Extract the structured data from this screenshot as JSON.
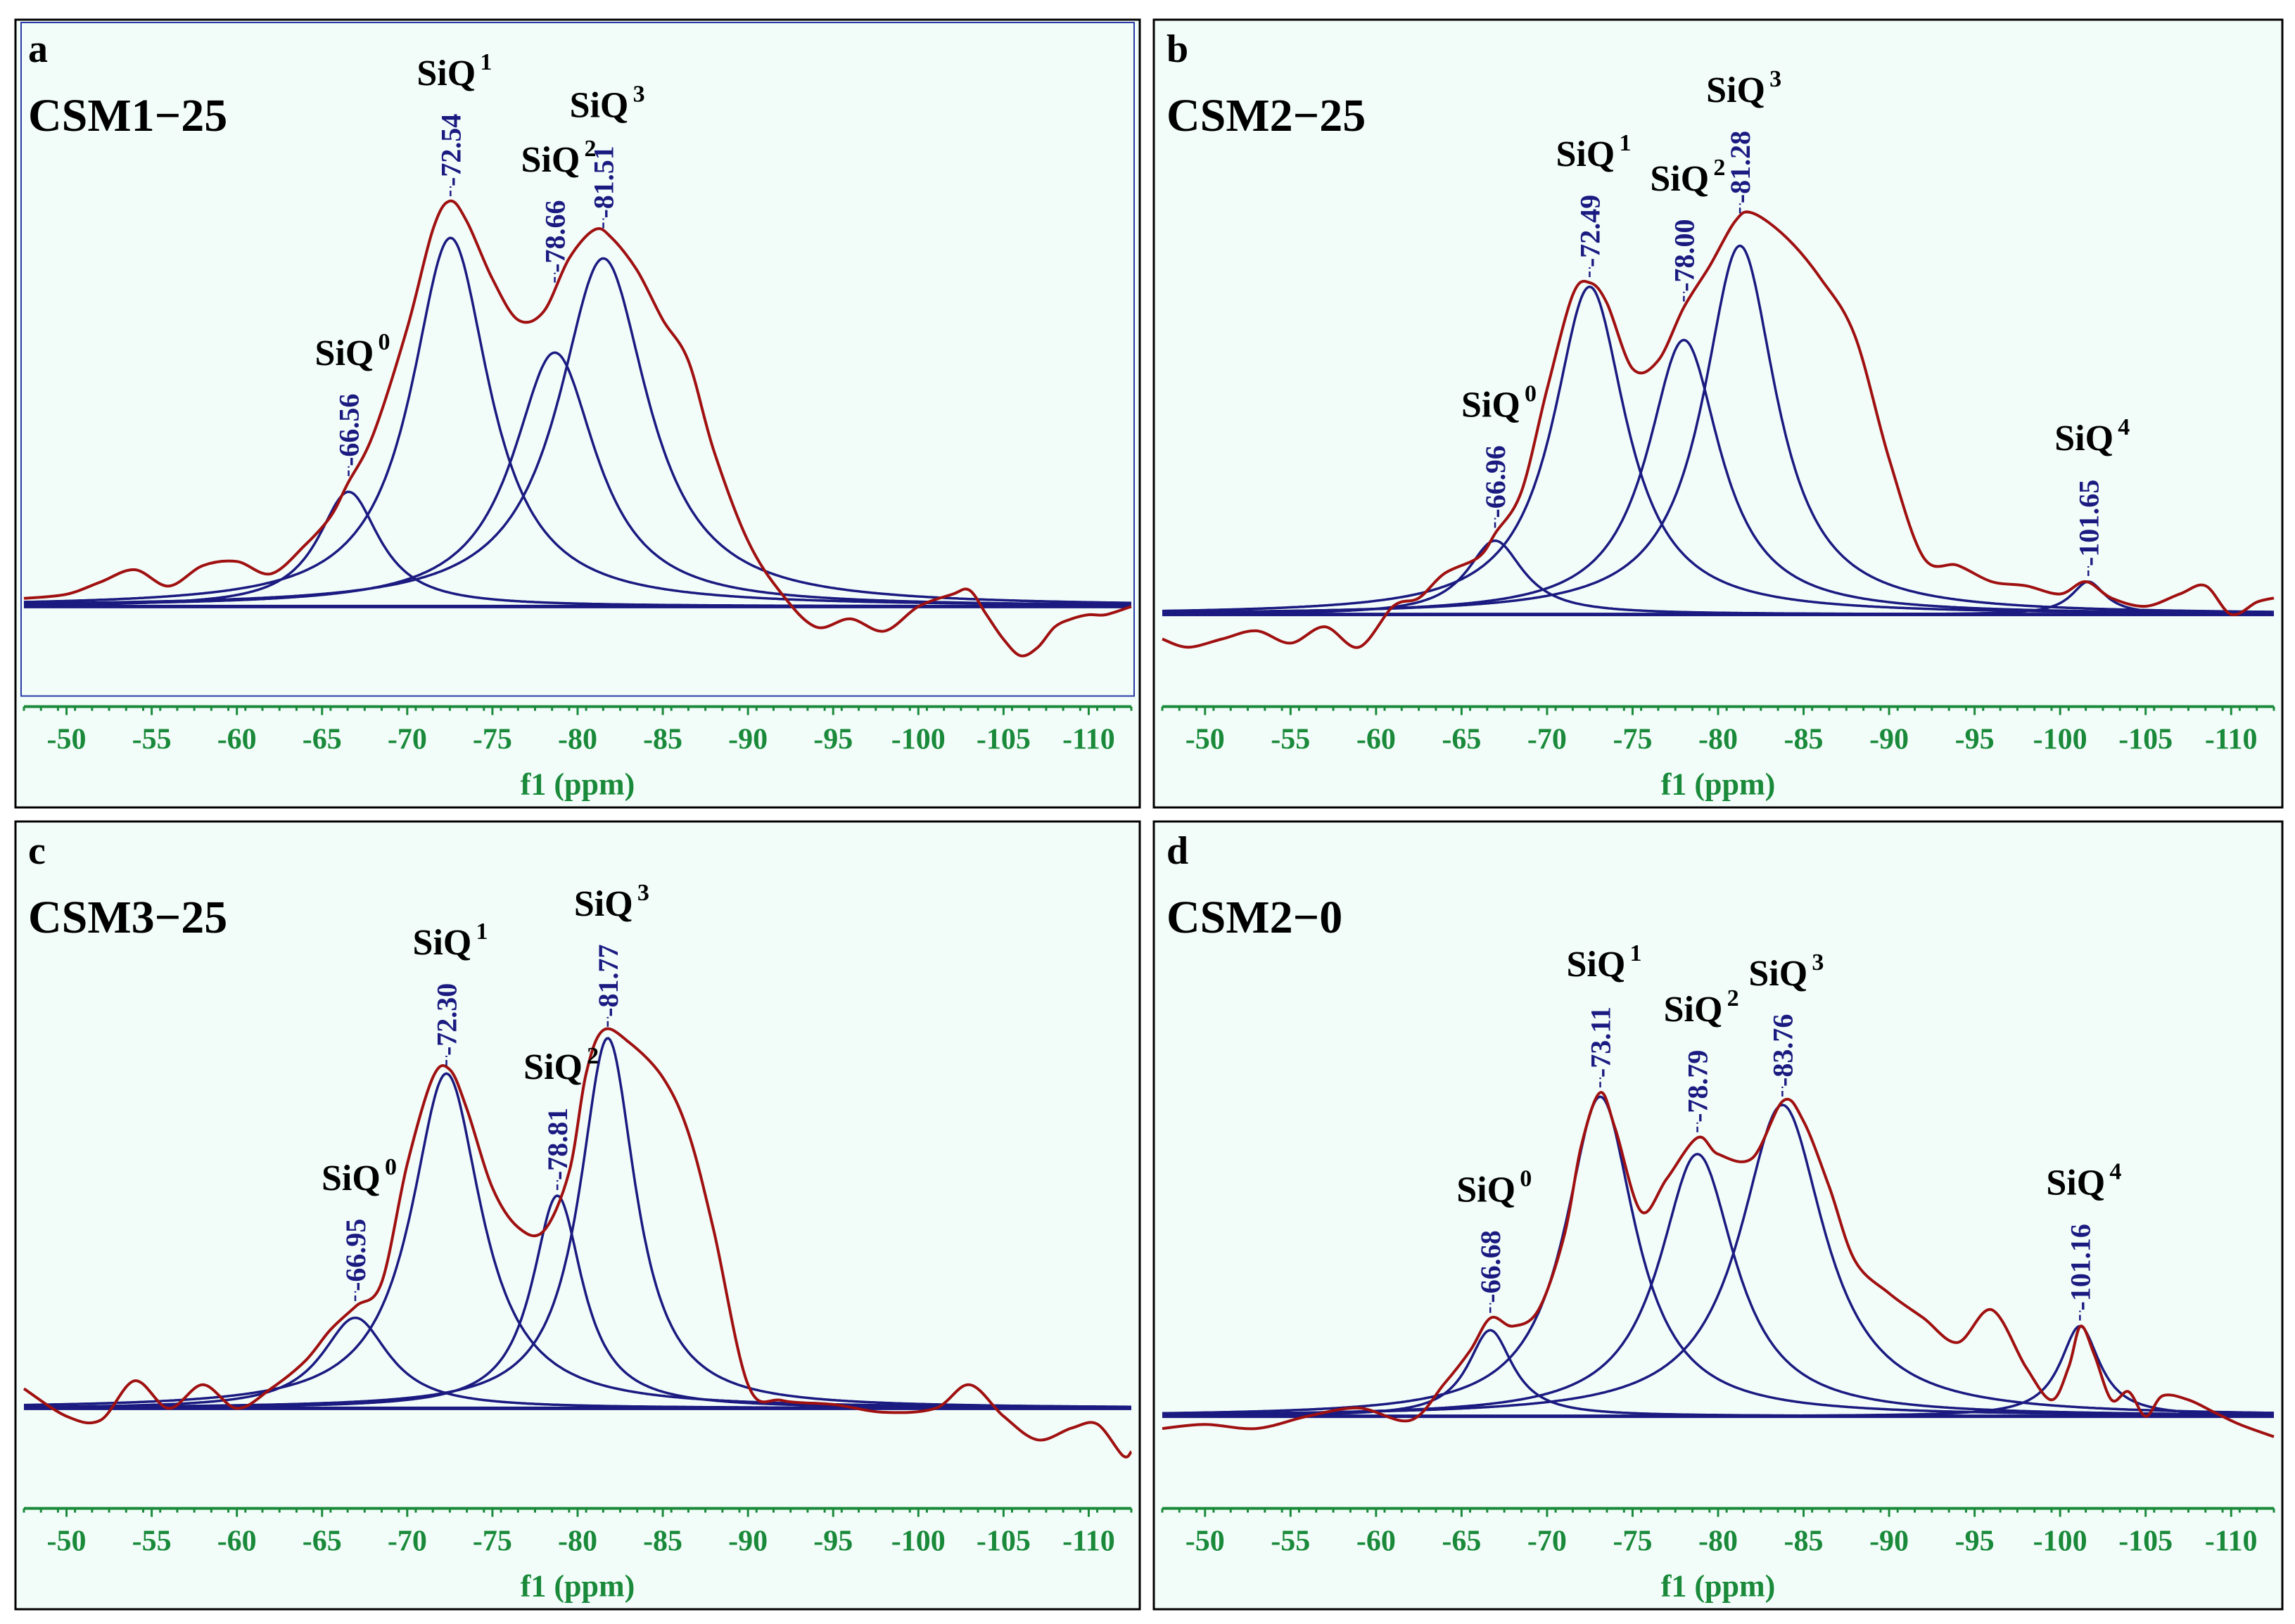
{
  "chart_data": [
    {
      "type": "line",
      "panel_letter": "a",
      "sample": "CSM1−25",
      "xlabel": "f1 (ppm)",
      "xlim": [
        -47.5,
        -112.5
      ],
      "xticks": [
        "-50",
        "-55",
        "-60",
        "-65",
        "-70",
        "-75",
        "-80",
        "-85",
        "-90",
        "-95",
        "-100",
        "-105",
        "-110"
      ],
      "peaks": [
        {
          "name": "SiQ",
          "sup": "0",
          "ppm": -66.56,
          "label": "-66.56",
          "height": 0.28,
          "width": 2.2
        },
        {
          "name": "SiQ",
          "sup": "1",
          "ppm": -72.54,
          "label": "-72.54",
          "height": 0.9,
          "width": 2.8
        },
        {
          "name": "SiQ",
          "sup": "2",
          "ppm": -78.66,
          "label": "-78.66",
          "height": 0.62,
          "width": 3.0
        },
        {
          "name": "SiQ",
          "sup": "3",
          "ppm": -81.51,
          "label": "-81.51",
          "height": 0.85,
          "width": 3.2
        }
      ],
      "experimental": {
        "x": [
          -47.5,
          -50,
          -52,
          -54,
          -56,
          -58,
          -60,
          -62,
          -64,
          -65.5,
          -66.5,
          -68,
          -70,
          -71.5,
          -72.5,
          -73.5,
          -75,
          -76.5,
          -78,
          -79.5,
          -81,
          -82,
          -83.5,
          -85,
          -86.5,
          -88,
          -90,
          -92,
          -94,
          -96,
          -98,
          -100,
          -102,
          -103,
          -104,
          -105,
          -106,
          -107,
          -108,
          -109,
          -110,
          -111,
          -112.5
        ],
        "y": [
          0.02,
          0.03,
          0.06,
          0.09,
          0.05,
          0.1,
          0.11,
          0.08,
          0.15,
          0.22,
          0.3,
          0.42,
          0.68,
          0.92,
          0.99,
          0.94,
          0.8,
          0.7,
          0.72,
          0.85,
          0.92,
          0.9,
          0.82,
          0.7,
          0.6,
          0.38,
          0.16,
          0.03,
          -0.05,
          -0.03,
          -0.06,
          0.0,
          0.03,
          0.04,
          -0.02,
          -0.08,
          -0.12,
          -0.1,
          -0.05,
          -0.03,
          -0.02,
          -0.02,
          0.0
        ]
      }
    },
    {
      "type": "line",
      "panel_letter": "b",
      "sample": "CSM2−25",
      "xlabel": "f1 (ppm)",
      "xlim": [
        -47.5,
        -112.5
      ],
      "xticks": [
        "-50",
        "-55",
        "-60",
        "-65",
        "-70",
        "-75",
        "-80",
        "-85",
        "-90",
        "-95",
        "-100",
        "-105",
        "-110"
      ],
      "peaks": [
        {
          "name": "SiQ",
          "sup": "0",
          "ppm": -66.96,
          "label": "-66.96",
          "height": 0.18,
          "width": 2.0
        },
        {
          "name": "SiQ",
          "sup": "1",
          "ppm": -72.49,
          "label": "-72.49",
          "height": 0.8,
          "width": 2.6
        },
        {
          "name": "SiQ",
          "sup": "2",
          "ppm": -78.0,
          "label": "-78.00",
          "height": 0.67,
          "width": 2.6
        },
        {
          "name": "SiQ",
          "sup": "3",
          "ppm": -81.28,
          "label": "-81.28",
          "height": 0.9,
          "width": 2.6
        },
        {
          "name": "SiQ",
          "sup": "4",
          "ppm": -101.65,
          "label": "-101.65",
          "height": 0.08,
          "width": 1.2
        }
      ],
      "experimental": {
        "x": [
          -47.5,
          -49,
          -51,
          -53,
          -55,
          -57,
          -59,
          -61,
          -62.5,
          -64,
          -66,
          -67,
          -68.5,
          -70,
          -71.5,
          -72.5,
          -73.5,
          -75,
          -76.5,
          -78,
          -79.5,
          -81,
          -82,
          -84,
          -86,
          -88,
          -90,
          -92,
          -94,
          -96,
          -98,
          -100,
          -101.5,
          -103,
          -105,
          -107,
          -108.5,
          -110,
          -111.5,
          -112.5
        ],
        "y": [
          -0.06,
          -0.08,
          -0.06,
          -0.04,
          -0.07,
          -0.03,
          -0.08,
          0.02,
          0.04,
          0.1,
          0.14,
          0.2,
          0.3,
          0.55,
          0.78,
          0.81,
          0.76,
          0.6,
          0.62,
          0.75,
          0.85,
          0.96,
          0.98,
          0.92,
          0.82,
          0.68,
          0.38,
          0.14,
          0.12,
          0.08,
          0.07,
          0.05,
          0.08,
          0.04,
          0.02,
          0.05,
          0.07,
          0.0,
          0.03,
          0.04
        ]
      }
    },
    {
      "type": "line",
      "panel_letter": "c",
      "sample": "CSM3−25",
      "xlabel": "f1 (ppm)",
      "xlim": [
        -47.5,
        -112.5
      ],
      "xticks": [
        "-50",
        "-55",
        "-60",
        "-65",
        "-70",
        "-75",
        "-80",
        "-85",
        "-90",
        "-95",
        "-100",
        "-105",
        "-110"
      ],
      "peaks": [
        {
          "name": "SiQ",
          "sup": "0",
          "ppm": -66.95,
          "label": "-66.95",
          "height": 0.23,
          "width": 2.4
        },
        {
          "name": "SiQ",
          "sup": "1",
          "ppm": -72.3,
          "label": "-72.30",
          "height": 0.85,
          "width": 2.5
        },
        {
          "name": "SiQ",
          "sup": "2",
          "ppm": -78.81,
          "label": "-78.81",
          "height": 0.54,
          "width": 1.8
        },
        {
          "name": "SiQ",
          "sup": "3",
          "ppm": -81.77,
          "label": "-81.77",
          "height": 0.94,
          "width": 2.0
        }
      ],
      "experimental": {
        "x": [
          -47.5,
          -50,
          -52,
          -54,
          -56,
          -58,
          -60,
          -62,
          -64,
          -65.5,
          -67,
          -68.5,
          -70,
          -71.5,
          -72.5,
          -73.5,
          -75,
          -76.5,
          -78,
          -79.5,
          -80.5,
          -81.5,
          -83,
          -85,
          -86.5,
          -88,
          -90,
          -92,
          -95,
          -98,
          -101,
          -103,
          -105,
          -107,
          -109,
          -110.5,
          -112,
          -112.5
        ],
        "y": [
          0.05,
          -0.02,
          -0.03,
          0.07,
          0.0,
          0.06,
          0.0,
          0.05,
          0.12,
          0.2,
          0.26,
          0.32,
          0.62,
          0.84,
          0.86,
          0.76,
          0.56,
          0.46,
          0.45,
          0.6,
          0.85,
          0.96,
          0.93,
          0.84,
          0.7,
          0.45,
          0.06,
          0.02,
          0.01,
          -0.01,
          0.0,
          0.06,
          -0.02,
          -0.08,
          -0.05,
          -0.04,
          -0.12,
          -0.11
        ]
      }
    },
    {
      "type": "line",
      "panel_letter": "d",
      "sample": "CSM2−0",
      "xlabel": "f1 (ppm)",
      "xlim": [
        -47.5,
        -112.5
      ],
      "xticks": [
        "-50",
        "-55",
        "-60",
        "-65",
        "-70",
        "-75",
        "-80",
        "-85",
        "-90",
        "-95",
        "-100",
        "-105",
        "-110"
      ],
      "peaks": [
        {
          "name": "SiQ",
          "sup": "0",
          "ppm": -66.68,
          "label": "-66.68",
          "height": 0.21,
          "width": 1.6
        },
        {
          "name": "SiQ",
          "sup": "1",
          "ppm": -73.11,
          "label": "-73.11",
          "height": 0.78,
          "width": 2.5
        },
        {
          "name": "SiQ",
          "sup": "2",
          "ppm": -78.79,
          "label": "-78.79",
          "height": 0.64,
          "width": 2.7
        },
        {
          "name": "SiQ",
          "sup": "3",
          "ppm": -83.76,
          "label": "-83.76",
          "height": 0.76,
          "width": 3.0
        },
        {
          "name": "SiQ",
          "sup": "4",
          "ppm": -101.16,
          "label": "-101.16",
          "height": 0.22,
          "width": 1.4
        }
      ],
      "experimental": {
        "x": [
          -47.5,
          -50,
          -53,
          -56,
          -59,
          -62,
          -64,
          -65.5,
          -66.7,
          -68,
          -69.5,
          -71,
          -72,
          -73.1,
          -74,
          -75.5,
          -77,
          -78.8,
          -80,
          -82,
          -83.8,
          -85,
          -86.5,
          -88,
          -90,
          -92,
          -94,
          -96,
          -98,
          -99.5,
          -100.5,
          -101.2,
          -102,
          -103,
          -104,
          -105,
          -106,
          -107.5,
          -109,
          -110.5,
          -112.5
        ],
        "y": [
          -0.03,
          -0.02,
          -0.03,
          0.0,
          0.02,
          -0.01,
          0.08,
          0.16,
          0.24,
          0.22,
          0.26,
          0.44,
          0.66,
          0.79,
          0.7,
          0.5,
          0.58,
          0.68,
          0.64,
          0.63,
          0.77,
          0.72,
          0.56,
          0.38,
          0.3,
          0.24,
          0.18,
          0.26,
          0.12,
          0.04,
          0.12,
          0.22,
          0.15,
          0.04,
          0.06,
          0.0,
          0.05,
          0.04,
          0.01,
          -0.02,
          -0.05
        ]
      }
    }
  ]
}
